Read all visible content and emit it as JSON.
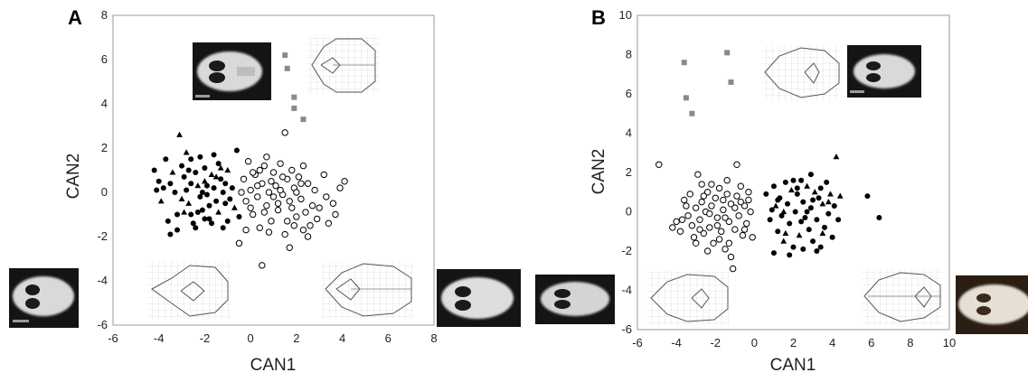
{
  "figure": {
    "colors": {
      "filled": "#000000",
      "open_stroke": "#000000",
      "square": "#8a8a8a",
      "frame": "#9a9a9a",
      "grid_lines": "#d8d8d8",
      "outline": "#555555"
    },
    "image_icons": [
      "skull-photo",
      "deformation-grid"
    ]
  },
  "chart_data": [
    {
      "type": "scatter",
      "panel_label": "A",
      "title": "",
      "xlabel": "CAN1",
      "ylabel": "CAN2",
      "xlim": [
        -6,
        8
      ],
      "ylim": [
        -6,
        8
      ],
      "xticks": [
        -6,
        -4,
        -2,
        0,
        2,
        4,
        6,
        8
      ],
      "yticks": [
        -6,
        -4,
        -2,
        0,
        2,
        4,
        6,
        8
      ],
      "grid": false,
      "series": [
        {
          "marker": "filled-circle-triangle",
          "points": [
            [
              -4.2,
              1.0
            ],
            [
              -4.0,
              0.5
            ],
            [
              -3.8,
              0.2
            ],
            [
              -3.9,
              -0.4
            ],
            [
              -3.6,
              -1.3
            ],
            [
              -3.5,
              -1.9
            ],
            [
              -3.2,
              -1.7
            ],
            [
              -3.1,
              2.6
            ],
            [
              -3.0,
              1.2
            ],
            [
              -2.9,
              0.7
            ],
            [
              -2.8,
              0.1
            ],
            [
              -2.7,
              -0.5
            ],
            [
              -2.6,
              -1.0
            ],
            [
              -2.6,
              1.5
            ],
            [
              -2.4,
              0.9
            ],
            [
              -2.3,
              0.3
            ],
            [
              -2.2,
              -0.2
            ],
            [
              -2.1,
              -0.8
            ],
            [
              -2.0,
              1.1
            ],
            [
              -2.0,
              0.5
            ],
            [
              -1.9,
              -0.1
            ],
            [
              -1.8,
              -0.6
            ],
            [
              -1.8,
              -1.2
            ],
            [
              -1.7,
              0.8
            ],
            [
              -1.6,
              0.2
            ],
            [
              -1.5,
              -0.4
            ],
            [
              -1.4,
              1.3
            ],
            [
              -1.4,
              -0.9
            ],
            [
              -1.3,
              0.6
            ],
            [
              -1.2,
              0.0
            ],
            [
              -1.1,
              -0.5
            ],
            [
              -1.0,
              1.0
            ],
            [
              -1.0,
              -1.3
            ],
            [
              -2.5,
              -1.4
            ],
            [
              -3.3,
              0.0
            ],
            [
              -2.9,
              -0.9
            ],
            [
              -2.2,
              1.6
            ],
            [
              -1.6,
              1.7
            ],
            [
              -2.4,
              -1.6
            ],
            [
              -3.0,
              -0.3
            ],
            [
              -1.9,
              0.3
            ],
            [
              -2.7,
              1.0
            ],
            [
              -0.8,
              0.2
            ],
            [
              -0.7,
              -0.7
            ],
            [
              -0.6,
              1.9
            ],
            [
              -1.2,
              -1.6
            ],
            [
              -2.0,
              -1.2
            ],
            [
              -3.4,
              0.9
            ],
            [
              -4.1,
              0.1
            ],
            [
              -2.6,
              0.4
            ],
            [
              -3.7,
              1.5
            ],
            [
              -1.5,
              0.7
            ],
            [
              -2.3,
              -0.9
            ],
            [
              -0.9,
              -0.3
            ],
            [
              -1.7,
              -1.4
            ],
            [
              -2.8,
              1.8
            ],
            [
              -3.2,
              -1.0
            ],
            [
              -1.1,
              0.4
            ],
            [
              -2.1,
              0.0
            ],
            [
              -1.3,
              1.1
            ],
            [
              -0.5,
              -1.1
            ],
            [
              -3.5,
              0.4
            ]
          ]
        },
        {
          "marker": "open-circle",
          "points": [
            [
              -0.3,
              0.6
            ],
            [
              -0.2,
              -0.4
            ],
            [
              -0.1,
              1.4
            ],
            [
              0.0,
              0.1
            ],
            [
              0.1,
              -1.0
            ],
            [
              0.2,
              0.8
            ],
            [
              0.3,
              -0.2
            ],
            [
              0.4,
              -1.6
            ],
            [
              0.5,
              0.4
            ],
            [
              0.6,
              1.2
            ],
            [
              0.7,
              -0.6
            ],
            [
              0.8,
              0.0
            ],
            [
              0.9,
              -1.3
            ],
            [
              1.0,
              0.9
            ],
            [
              1.1,
              0.3
            ],
            [
              1.2,
              -0.8
            ],
            [
              1.3,
              1.3
            ],
            [
              1.4,
              -0.1
            ],
            [
              1.5,
              -1.9
            ],
            [
              1.6,
              0.6
            ],
            [
              1.7,
              -0.4
            ],
            [
              1.8,
              1.0
            ],
            [
              1.9,
              0.2
            ],
            [
              2.0,
              -1.1
            ],
            [
              2.1,
              0.7
            ],
            [
              2.2,
              -0.3
            ],
            [
              2.3,
              1.2
            ],
            [
              2.4,
              -0.9
            ],
            [
              2.5,
              0.4
            ],
            [
              2.6,
              -1.5
            ],
            [
              2.8,
              0.1
            ],
            [
              3.0,
              -0.7
            ],
            [
              3.2,
              0.8
            ],
            [
              3.4,
              -1.4
            ],
            [
              3.6,
              -0.5
            ],
            [
              3.7,
              -1.0
            ],
            [
              3.9,
              0.2
            ],
            [
              4.1,
              0.5
            ],
            [
              -0.5,
              -2.3
            ],
            [
              0.5,
              -3.3
            ],
            [
              1.5,
              2.7
            ],
            [
              -0.2,
              -1.7
            ],
            [
              0.3,
              0.3
            ],
            [
              0.6,
              -0.9
            ],
            [
              0.9,
              0.5
            ],
            [
              1.2,
              -0.5
            ],
            [
              1.6,
              -1.3
            ],
            [
              2.0,
              0.0
            ],
            [
              2.3,
              -1.7
            ],
            [
              2.7,
              -0.6
            ],
            [
              0.0,
              -0.7
            ],
            [
              0.4,
              1.0
            ],
            [
              1.0,
              -0.2
            ],
            [
              1.4,
              0.7
            ],
            [
              1.8,
              -0.7
            ],
            [
              2.2,
              0.4
            ],
            [
              2.9,
              -1.2
            ],
            [
              3.3,
              -0.2
            ],
            [
              0.1,
              0.9
            ],
            [
              1.7,
              -2.5
            ],
            [
              0.8,
              -1.8
            ],
            [
              1.3,
              0.1
            ],
            [
              -0.4,
              0.0
            ],
            [
              2.5,
              -2.0
            ],
            [
              0.7,
              1.6
            ],
            [
              1.9,
              -1.5
            ]
          ]
        },
        {
          "marker": "gray-square",
          "points": [
            [
              1.5,
              6.2
            ],
            [
              1.6,
              5.6
            ],
            [
              1.9,
              4.3
            ],
            [
              1.9,
              3.8
            ],
            [
              2.3,
              3.3
            ]
          ]
        }
      ]
    },
    {
      "type": "scatter",
      "panel_label": "B",
      "title": "",
      "xlabel": "CAN1",
      "ylabel": "CAN2",
      "xlim": [
        -6,
        10
      ],
      "ylim": [
        -6,
        10
      ],
      "xticks": [
        -6,
        -4,
        -2,
        0,
        2,
        4,
        6,
        8,
        10
      ],
      "yticks": [
        -6,
        -4,
        -2,
        0,
        2,
        4,
        6,
        8,
        10
      ],
      "grid": false,
      "series": [
        {
          "marker": "open-circle",
          "points": [
            [
              -4.9,
              2.4
            ],
            [
              -4.2,
              -0.8
            ],
            [
              -4.0,
              -0.5
            ],
            [
              -3.8,
              -1.0
            ],
            [
              -3.6,
              0.6
            ],
            [
              -3.4,
              -0.2
            ],
            [
              -3.3,
              0.9
            ],
            [
              -3.2,
              -0.7
            ],
            [
              -3.1,
              -1.3
            ],
            [
              -3.0,
              0.2
            ],
            [
              -2.9,
              1.9
            ],
            [
              -2.8,
              -0.4
            ],
            [
              -2.7,
              0.5
            ],
            [
              -2.6,
              -1.1
            ],
            [
              -2.5,
              0.0
            ],
            [
              -2.4,
              1.0
            ],
            [
              -2.3,
              -0.8
            ],
            [
              -2.2,
              0.3
            ],
            [
              -2.1,
              -1.6
            ],
            [
              -2.0,
              0.7
            ],
            [
              -1.9,
              -0.3
            ],
            [
              -1.8,
              1.2
            ],
            [
              -1.7,
              -1.0
            ],
            [
              -1.6,
              0.1
            ],
            [
              -1.5,
              -1.9
            ],
            [
              -1.4,
              0.9
            ],
            [
              -1.3,
              -0.5
            ],
            [
              -1.2,
              0.4
            ],
            [
              -1.1,
              -2.9
            ],
            [
              -1.0,
              -0.9
            ],
            [
              -0.9,
              0.8
            ],
            [
              -0.8,
              -0.2
            ],
            [
              -0.7,
              1.3
            ],
            [
              -0.6,
              -1.2
            ],
            [
              -0.5,
              0.3
            ],
            [
              -0.4,
              -0.6
            ],
            [
              -0.3,
              1.0
            ],
            [
              -0.2,
              0.0
            ],
            [
              -0.1,
              -1.3
            ],
            [
              -0.9,
              2.4
            ],
            [
              -2.6,
              0.8
            ],
            [
              -3.0,
              -1.6
            ],
            [
              -2.4,
              -2.0
            ],
            [
              -1.8,
              -1.4
            ],
            [
              -1.2,
              -2.3
            ],
            [
              -2.2,
              1.4
            ],
            [
              -1.6,
              0.6
            ],
            [
              -0.5,
              -0.9
            ],
            [
              -3.5,
              0.3
            ],
            [
              -2.8,
              -0.9
            ],
            [
              -1.4,
              1.6
            ],
            [
              -0.7,
              0.5
            ],
            [
              -1.9,
              -0.7
            ],
            [
              -2.3,
              -0.1
            ],
            [
              -1.0,
              0.2
            ],
            [
              -3.7,
              -0.4
            ],
            [
              -1.3,
              -1.6
            ],
            [
              -0.3,
              0.6
            ],
            [
              -2.7,
              1.4
            ],
            [
              -1.5,
              -0.3
            ]
          ]
        },
        {
          "marker": "filled-circle-triangle",
          "points": [
            [
              0.6,
              0.9
            ],
            [
              0.8,
              -0.4
            ],
            [
              1.0,
              1.3
            ],
            [
              1.1,
              0.3
            ],
            [
              1.2,
              -1.0
            ],
            [
              1.3,
              0.7
            ],
            [
              1.4,
              -0.2
            ],
            [
              1.5,
              -1.5
            ],
            [
              1.6,
              1.5
            ],
            [
              1.7,
              0.4
            ],
            [
              1.8,
              -0.6
            ],
            [
              1.9,
              1.1
            ],
            [
              2.0,
              -1.8
            ],
            [
              2.1,
              0.0
            ],
            [
              2.2,
              0.9
            ],
            [
              2.3,
              -1.2
            ],
            [
              2.4,
              1.6
            ],
            [
              2.5,
              0.5
            ],
            [
              2.6,
              -0.3
            ],
            [
              2.7,
              1.3
            ],
            [
              2.8,
              -0.9
            ],
            [
              2.9,
              0.2
            ],
            [
              3.0,
              -1.5
            ],
            [
              3.1,
              1.0
            ],
            [
              3.2,
              -0.4
            ],
            [
              3.3,
              0.7
            ],
            [
              3.4,
              -1.8
            ],
            [
              3.5,
              0.4
            ],
            [
              3.6,
              -0.8
            ],
            [
              3.7,
              1.5
            ],
            [
              3.8,
              -0.1
            ],
            [
              3.9,
              0.9
            ],
            [
              4.0,
              -1.3
            ],
            [
              4.1,
              0.3
            ],
            [
              4.3,
              -0.4
            ],
            [
              4.2,
              2.8
            ],
            [
              5.8,
              0.8
            ],
            [
              6.4,
              -0.3
            ],
            [
              1.0,
              -2.1
            ],
            [
              1.5,
              0.0
            ],
            [
              2.0,
              1.6
            ],
            [
              2.5,
              -1.9
            ],
            [
              3.0,
              0.6
            ],
            [
              3.5,
              -1.1
            ],
            [
              1.8,
              -2.2
            ],
            [
              2.9,
              1.9
            ],
            [
              3.4,
              1.2
            ],
            [
              4.4,
              0.8
            ],
            [
              1.2,
              0.6
            ],
            [
              2.4,
              -0.5
            ],
            [
              2.7,
              0.0
            ],
            [
              1.6,
              -1.1
            ],
            [
              3.2,
              -2.0
            ],
            [
              0.9,
              0.1
            ],
            [
              2.2,
              1.2
            ],
            [
              3.8,
              0.5
            ]
          ]
        },
        {
          "marker": "gray-square",
          "points": [
            [
              -3.6,
              7.6
            ],
            [
              -3.5,
              5.8
            ],
            [
              -3.2,
              5.0
            ],
            [
              -1.4,
              8.1
            ],
            [
              -1.2,
              6.6
            ]
          ]
        }
      ]
    }
  ]
}
